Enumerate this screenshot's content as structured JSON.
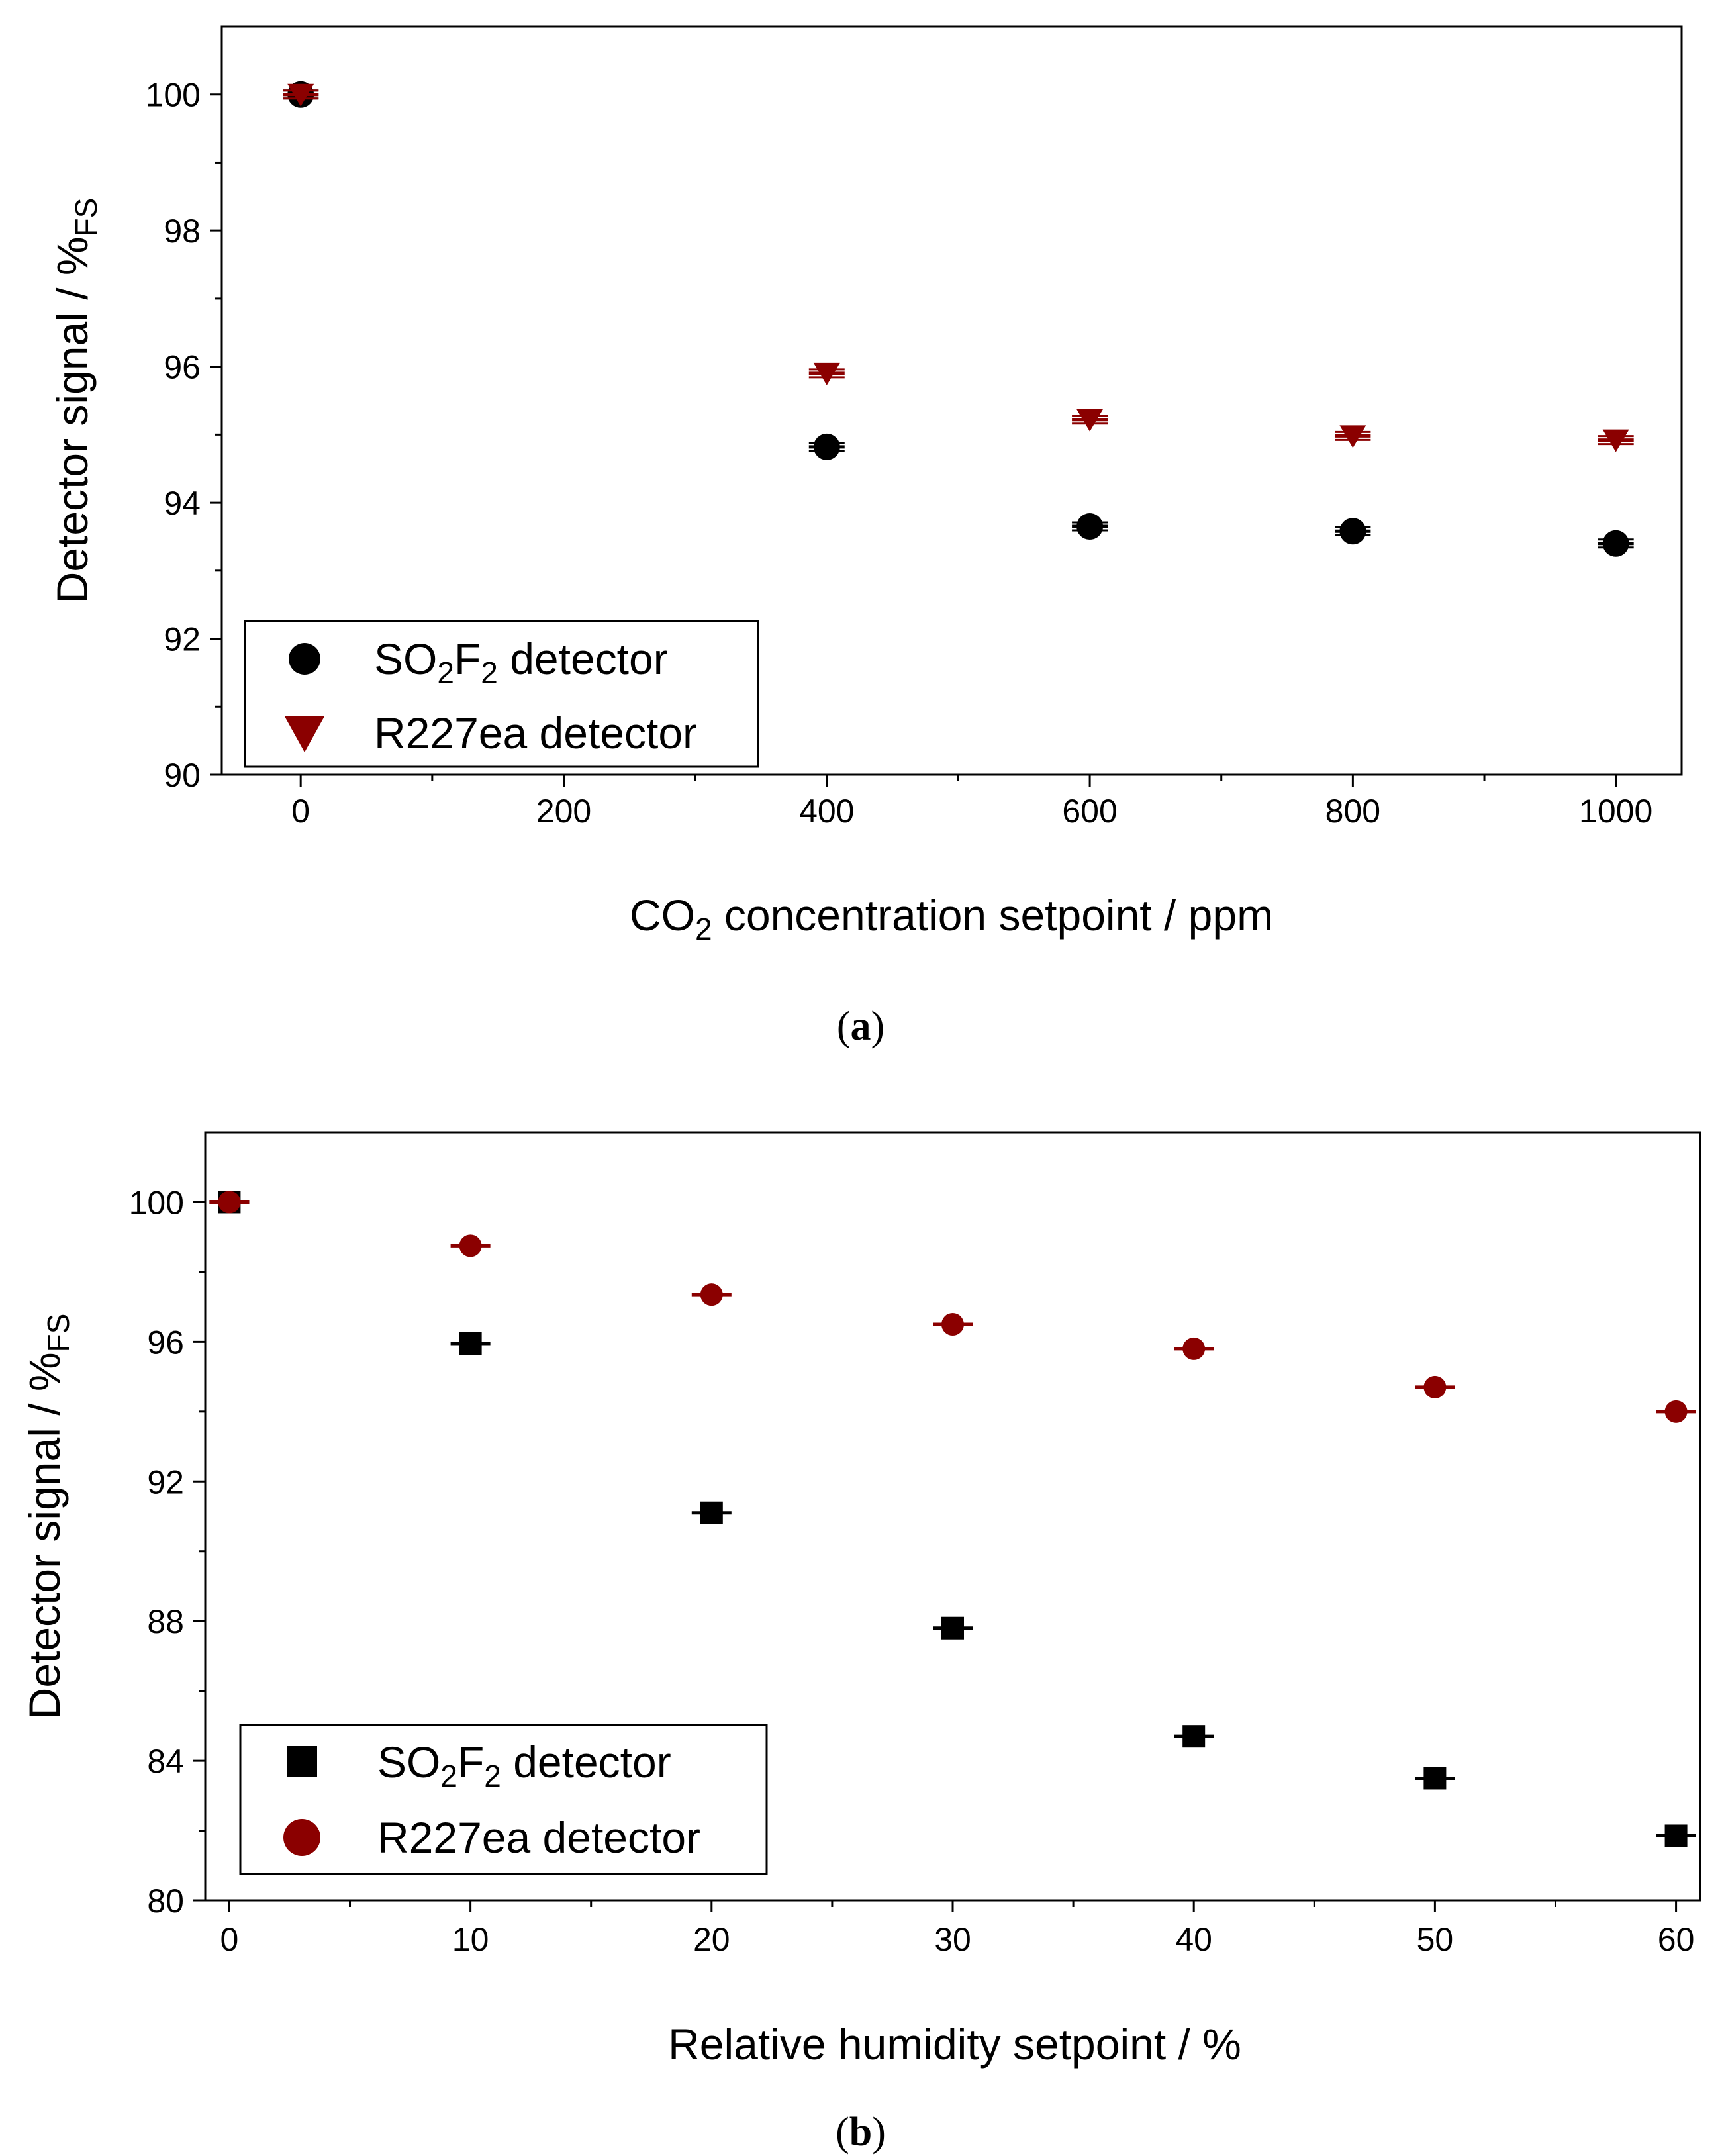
{
  "colors": {
    "black": "#000000",
    "darkred": "#8b0000"
  },
  "chart_data": [
    {
      "type": "scatter",
      "panel_label": "(a)",
      "panel_letter": "a",
      "xlabel_main": "CO",
      "xlabel_sub": "2",
      "xlabel_rest": " concentration setpoint / ppm",
      "ylabel_main": "Detector signal / %",
      "ylabel_sub": "FS",
      "xlim": [
        -60,
        1050
      ],
      "ylim": [
        90,
        101
      ],
      "xticks": [
        0,
        200,
        400,
        600,
        800,
        1000
      ],
      "xticks_minor": [
        100,
        300,
        500,
        700,
        900
      ],
      "yticks": [
        90,
        92,
        94,
        96,
        98,
        100
      ],
      "yticks_minor": [
        91,
        93,
        95,
        97,
        99
      ],
      "legend_position": "bottom-left",
      "series": [
        {
          "name": "SO2F2 detector",
          "legend_parts": [
            "SO",
            "2",
            "F",
            "2",
            " detector"
          ],
          "marker": "circle",
          "color": "#000000",
          "x": [
            0,
            400,
            600,
            800,
            1000
          ],
          "y": [
            100.0,
            94.82,
            93.65,
            93.58,
            93.4
          ]
        },
        {
          "name": "R227ea detector",
          "legend_parts": [
            "R227ea detector"
          ],
          "marker": "triangle-down",
          "color": "#8b0000",
          "x": [
            0,
            400,
            600,
            800,
            1000
          ],
          "y": [
            100.0,
            95.9,
            95.22,
            94.98,
            94.92
          ]
        }
      ]
    },
    {
      "type": "scatter",
      "panel_label": "(b)",
      "panel_letter": "b",
      "xlabel_main": "Relative humidity setpoint / %",
      "xlabel_sub": "",
      "xlabel_rest": "",
      "ylabel_main": "Detector signal / %",
      "ylabel_sub": "FS",
      "xlim": [
        -1,
        61
      ],
      "ylim": [
        80,
        102
      ],
      "xticks": [
        0,
        10,
        20,
        30,
        40,
        50,
        60
      ],
      "xticks_minor": [
        5,
        15,
        25,
        35,
        45,
        55
      ],
      "yticks": [
        80,
        84,
        88,
        92,
        96,
        100
      ],
      "yticks_minor": [
        82,
        86,
        90,
        94,
        98
      ],
      "legend_position": "bottom-left",
      "series": [
        {
          "name": "SO2F2 detector",
          "legend_parts": [
            "SO",
            "2",
            "F",
            "2",
            " detector"
          ],
          "marker": "square",
          "color": "#000000",
          "x": [
            0,
            10,
            20,
            30,
            40,
            50,
            60
          ],
          "y": [
            100.0,
            95.95,
            91.1,
            87.8,
            84.7,
            83.5,
            81.85
          ]
        },
        {
          "name": "R227ea detector",
          "legend_parts": [
            "R227ea detector"
          ],
          "marker": "circle",
          "color": "#8b0000",
          "x": [
            0,
            10,
            20,
            30,
            40,
            50,
            60
          ],
          "y": [
            100.0,
            98.75,
            97.35,
            96.5,
            95.8,
            94.7,
            94.0
          ]
        }
      ]
    }
  ]
}
